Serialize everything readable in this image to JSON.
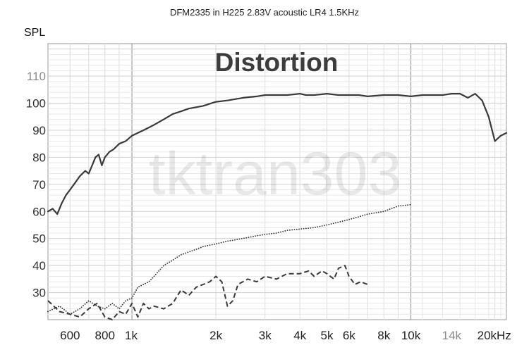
{
  "chart_data": {
    "type": "line",
    "title": "DFM2335 in H225 2.83V acoustic LR4 1.5KHz",
    "heading": "Distortion",
    "watermark": "tktran303",
    "ylabel": "SPL",
    "xlabel": "",
    "x_scale": "log",
    "xlim": [
      500,
      22000
    ],
    "ylim": [
      20,
      122
    ],
    "grid": true,
    "x_ticks": [
      {
        "value": 600,
        "label": "600"
      },
      {
        "value": 800,
        "label": "800"
      },
      {
        "value": 1000,
        "label": "1k"
      },
      {
        "value": 2000,
        "label": "2k"
      },
      {
        "value": 3000,
        "label": "3k"
      },
      {
        "value": 4000,
        "label": "4k"
      },
      {
        "value": 5000,
        "label": "5k"
      },
      {
        "value": 6000,
        "label": "6k"
      },
      {
        "value": 8000,
        "label": "8k"
      },
      {
        "value": 10000,
        "label": "10k"
      },
      {
        "value": 14000,
        "label": "14k",
        "dim": true
      },
      {
        "value": 20000,
        "label": "20kHz"
      }
    ],
    "y_ticks": [
      {
        "value": 30,
        "label": "30"
      },
      {
        "value": 40,
        "label": "40"
      },
      {
        "value": 50,
        "label": "50"
      },
      {
        "value": 60,
        "label": "60"
      },
      {
        "value": 70,
        "label": "70"
      },
      {
        "value": 80,
        "label": "80"
      },
      {
        "value": 90,
        "label": "90"
      },
      {
        "value": 100,
        "label": "100"
      },
      {
        "value": 110,
        "label": "110",
        "dim": true
      }
    ],
    "series": [
      {
        "style": "solid",
        "color": "#3a3a3a",
        "x": [
          500,
          520,
          540,
          560,
          580,
          600,
          620,
          650,
          680,
          700,
          720,
          740,
          760,
          780,
          800,
          830,
          860,
          900,
          950,
          1000,
          1050,
          1100,
          1150,
          1200,
          1300,
          1400,
          1500,
          1600,
          1800,
          2000,
          2200,
          2500,
          2800,
          3000,
          3300,
          3600,
          4000,
          4200,
          4500,
          5000,
          5500,
          6000,
          6500,
          7000,
          8000,
          9000,
          10000,
          11000,
          12000,
          13000,
          14000,
          15000,
          16000,
          17000,
          18000,
          19000,
          20000,
          21000,
          22000
        ],
        "y": [
          60,
          61,
          59,
          63,
          66,
          68,
          70,
          73,
          75,
          74,
          77,
          80,
          81,
          77,
          80,
          82,
          83,
          85,
          86,
          88,
          89,
          90,
          91,
          92,
          94,
          96,
          97,
          98,
          99,
          100.5,
          101,
          102,
          102.5,
          103,
          103,
          103,
          103.5,
          103,
          103,
          103.5,
          103,
          103,
          103,
          102.5,
          103,
          103,
          102.5,
          103,
          103,
          103,
          103.5,
          103.5,
          102,
          103.5,
          101,
          95,
          86,
          88,
          89
        ]
      },
      {
        "style": "dotted",
        "color": "#3a3a3a",
        "x": [
          500,
          550,
          600,
          650,
          700,
          750,
          800,
          850,
          900,
          950,
          1000,
          1050,
          1100,
          1150,
          1200,
          1300,
          1400,
          1500,
          1600,
          1700,
          1800,
          2000,
          2200,
          2500,
          2800,
          3000,
          3300,
          3600,
          4000,
          4500,
          5000,
          5500,
          6000,
          6500,
          7000,
          8000,
          9000,
          10000
        ],
        "y": [
          23,
          25,
          22,
          24,
          27,
          25,
          24,
          26,
          24,
          27,
          28,
          32,
          33,
          34,
          36,
          40,
          42,
          44,
          45,
          46,
          47,
          48,
          49,
          50,
          51,
          51.5,
          52,
          53,
          53.5,
          54,
          55,
          56,
          57,
          58,
          59,
          60,
          62,
          62.5
        ]
      },
      {
        "style": "dashed",
        "color": "#3a3a3a",
        "x": [
          500,
          550,
          600,
          650,
          700,
          750,
          800,
          850,
          900,
          950,
          1000,
          1050,
          1100,
          1150,
          1200,
          1300,
          1400,
          1500,
          1600,
          1700,
          1800,
          1900,
          2000,
          2100,
          2200,
          2300,
          2400,
          2600,
          2800,
          3000,
          3300,
          3600,
          4000,
          4300,
          4500,
          4800,
          5000,
          5300,
          5500,
          5800,
          6000,
          6300,
          6600,
          7000
        ],
        "y": [
          27,
          23,
          22,
          21,
          24,
          26,
          21,
          20,
          23,
          22,
          26,
          21,
          26,
          24,
          25,
          24,
          26,
          31,
          29,
          32,
          33,
          34,
          36,
          34,
          25,
          27,
          33,
          35,
          34,
          36,
          35,
          37,
          37,
          38,
          36,
          38,
          37,
          35,
          39,
          40,
          36,
          33,
          34,
          33
        ]
      }
    ]
  }
}
